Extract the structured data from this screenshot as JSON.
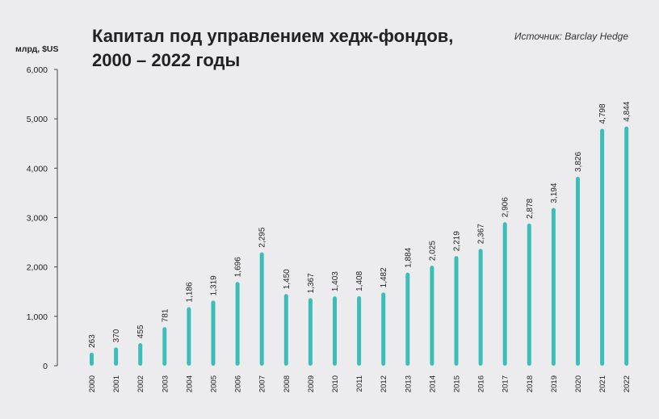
{
  "chart_data": {
    "type": "bar",
    "title": "Капитал под управлением хедж-фондов,",
    "title_line2": "2000 – 2022 годы",
    "source": "Источник: Barclay Hedge",
    "ylabel": "млрд, $US",
    "ylim": [
      0,
      6000
    ],
    "yticks": [
      "0",
      "1,000",
      "2,000",
      "3,000",
      "4,000",
      "5,000",
      "6,000"
    ],
    "ytick_values": [
      0,
      1000,
      2000,
      3000,
      4000,
      5000,
      6000
    ],
    "categories": [
      "2000",
      "2001",
      "2002",
      "2003",
      "2004",
      "2005",
      "2006",
      "2007",
      "2008",
      "2009",
      "2010",
      "2011",
      "2012",
      "2013",
      "2014",
      "2015",
      "2016",
      "2017",
      "2018",
      "2019",
      "2020",
      "2021",
      "2022"
    ],
    "values": [
      263,
      370,
      455,
      781,
      1186,
      1319,
      1696,
      2295,
      1450,
      1367,
      1403,
      1408,
      1482,
      1884,
      2025,
      2219,
      2367,
      2906,
      2878,
      3194,
      3826,
      4798,
      4844
    ],
    "value_labels": [
      "263",
      "370",
      "455",
      "781",
      "1,186",
      "1,319",
      "1,696",
      "2,295",
      "1,450",
      "1,367",
      "1,403",
      "1,408",
      "1,482",
      "1,884",
      "2,025",
      "2,219",
      "2,367",
      "2,906",
      "2,878",
      "3,194",
      "3,826",
      "4,798",
      "4,844"
    ],
    "bar_color": "#3dbdb8",
    "axis_color": "#444444",
    "grid": false,
    "legend": "none"
  }
}
